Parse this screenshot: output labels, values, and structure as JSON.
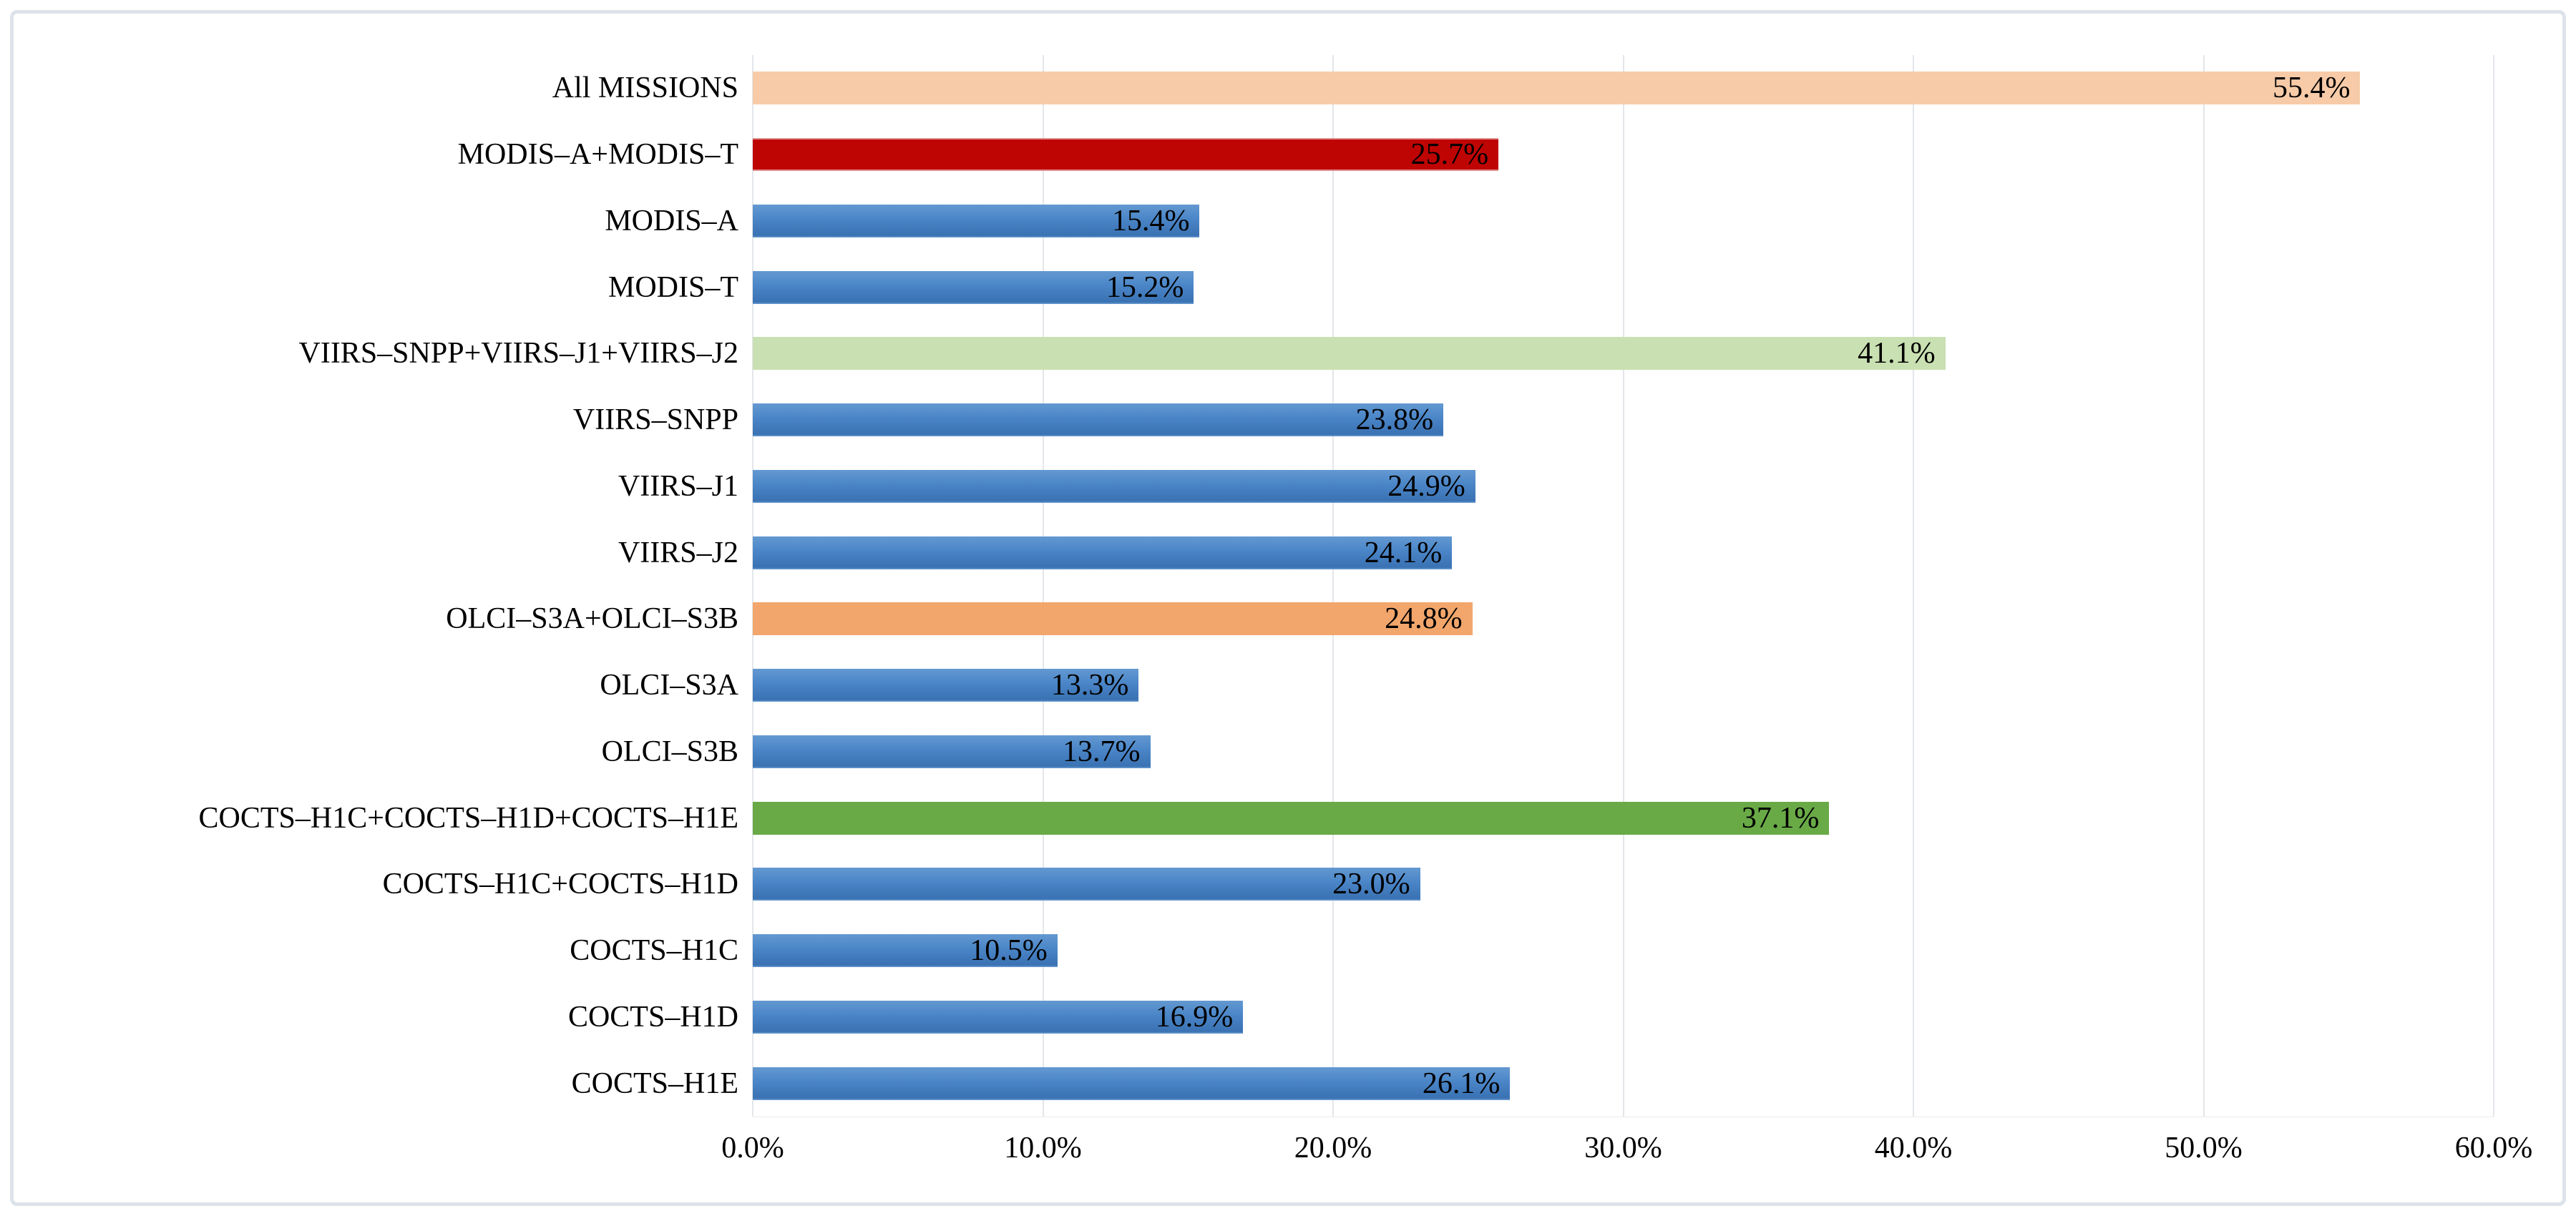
{
  "chart_data": {
    "type": "bar",
    "orientation": "horizontal",
    "title": "",
    "xlabel": "",
    "ylabel": "",
    "xlim": [
      0,
      60
    ],
    "grid": true,
    "legend": "none",
    "value_label_position": "inside-end",
    "categories": [
      "All MISSIONS",
      "MODIS–A+MODIS–T",
      "MODIS–A",
      "MODIS–T",
      "VIIRS–SNPP+VIIRS–J1+VIIRS–J2",
      "VIIRS–SNPP",
      "VIIRS–J1",
      "VIIRS–J2",
      "OLCI–S3A+OLCI–S3B",
      "OLCI–S3A",
      "OLCI–S3B",
      "COCTS–H1C+COCTS–H1D+COCTS–H1E",
      "COCTS–H1C+COCTS–H1D",
      "COCTS–H1C",
      "COCTS–H1D",
      "COCTS–H1E"
    ],
    "values": [
      55.4,
      25.7,
      15.4,
      15.2,
      41.1,
      23.8,
      24.9,
      24.1,
      24.8,
      13.3,
      13.7,
      37.1,
      23.0,
      10.5,
      16.9,
      26.1
    ],
    "value_labels": [
      "55.4%",
      "25.7%",
      "15.4%",
      "15.2%",
      "41.1%",
      "23.8%",
      "24.9%",
      "24.1%",
      "24.8%",
      "13.3%",
      "13.7%",
      "37.1%",
      "23.0%",
      "10.5%",
      "16.9%",
      "26.1%"
    ],
    "bar_styles": [
      "peach",
      "red",
      "blue",
      "blue",
      "light_green",
      "blue",
      "blue",
      "blue",
      "orange",
      "blue",
      "blue",
      "green",
      "blue",
      "blue",
      "blue",
      "blue"
    ],
    "palette": {
      "peach": "#F7CBA8",
      "red": "#BE0504",
      "blue": "#4A85C7",
      "light_green": "#C9E0B2",
      "orange": "#F2A66B",
      "green": "#69AA47"
    },
    "x_ticks": [
      {
        "value": 0,
        "label": "0.0%"
      },
      {
        "value": 10,
        "label": "10.0%"
      },
      {
        "value": 20,
        "label": "20.0%"
      },
      {
        "value": 30,
        "label": "30.0%"
      },
      {
        "value": 40,
        "label": "40.0%"
      },
      {
        "value": 50,
        "label": "50.0%"
      },
      {
        "value": 60,
        "label": "60.0%"
      }
    ],
    "gridline_color": "#E3E6EA",
    "frame_border_color": "#DDE3EA",
    "background": "#FFFFFF"
  }
}
